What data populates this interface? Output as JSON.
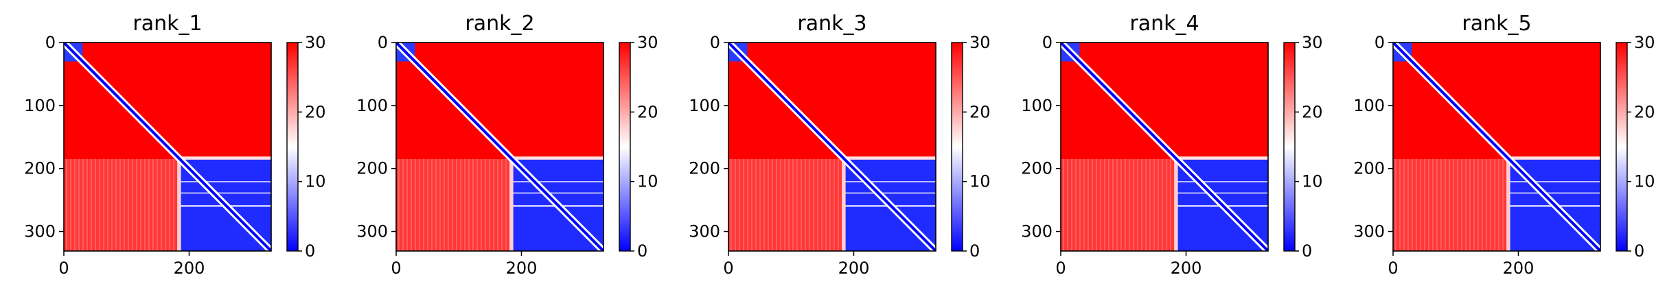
{
  "chart_data": [
    {
      "type": "heatmap",
      "title": "rank_1",
      "xlim": [
        0,
        331
      ],
      "ylim": [
        331,
        0
      ],
      "xticks": [
        0,
        200
      ],
      "yticks": [
        0,
        100,
        200,
        300
      ],
      "colorbar": {
        "min": 0,
        "max": 30,
        "ticks": [
          0,
          10,
          20,
          30
        ],
        "colors": [
          "#0000ff",
          "#ffffff",
          "#ff0000"
        ]
      },
      "blocks": {
        "domain1_end": 30,
        "domain2_end": 185
      }
    },
    {
      "type": "heatmap",
      "title": "rank_2",
      "xlim": [
        0,
        331
      ],
      "ylim": [
        331,
        0
      ],
      "xticks": [
        0,
        200
      ],
      "yticks": [
        0,
        100,
        200,
        300
      ],
      "colorbar": {
        "min": 0,
        "max": 30,
        "ticks": [
          0,
          10,
          20,
          30
        ],
        "colors": [
          "#0000ff",
          "#ffffff",
          "#ff0000"
        ]
      },
      "blocks": {
        "domain1_end": 30,
        "domain2_end": 185
      }
    },
    {
      "type": "heatmap",
      "title": "rank_3",
      "xlim": [
        0,
        331
      ],
      "ylim": [
        331,
        0
      ],
      "xticks": [
        0,
        200
      ],
      "yticks": [
        0,
        100,
        200,
        300
      ],
      "colorbar": {
        "min": 0,
        "max": 30,
        "ticks": [
          0,
          10,
          20,
          30
        ],
        "colors": [
          "#0000ff",
          "#ffffff",
          "#ff0000"
        ]
      },
      "blocks": {
        "domain1_end": 30,
        "domain2_end": 185
      }
    },
    {
      "type": "heatmap",
      "title": "rank_4",
      "xlim": [
        0,
        331
      ],
      "ylim": [
        331,
        0
      ],
      "xticks": [
        0,
        200
      ],
      "yticks": [
        0,
        100,
        200,
        300
      ],
      "colorbar": {
        "min": 0,
        "max": 30,
        "ticks": [
          0,
          10,
          20,
          30
        ],
        "colors": [
          "#0000ff",
          "#ffffff",
          "#ff0000"
        ]
      },
      "blocks": {
        "domain1_end": 30,
        "domain2_end": 185
      }
    },
    {
      "type": "heatmap",
      "title": "rank_5",
      "xlim": [
        0,
        331
      ],
      "ylim": [
        331,
        0
      ],
      "xticks": [
        0,
        200
      ],
      "yticks": [
        0,
        100,
        200,
        300
      ],
      "colorbar": {
        "min": 0,
        "max": 30,
        "ticks": [
          0,
          10,
          20,
          30
        ],
        "colors": [
          "#0000ff",
          "#ffffff",
          "#ff0000"
        ]
      },
      "blocks": {
        "domain1_end": 30,
        "domain2_end": 185
      }
    }
  ]
}
